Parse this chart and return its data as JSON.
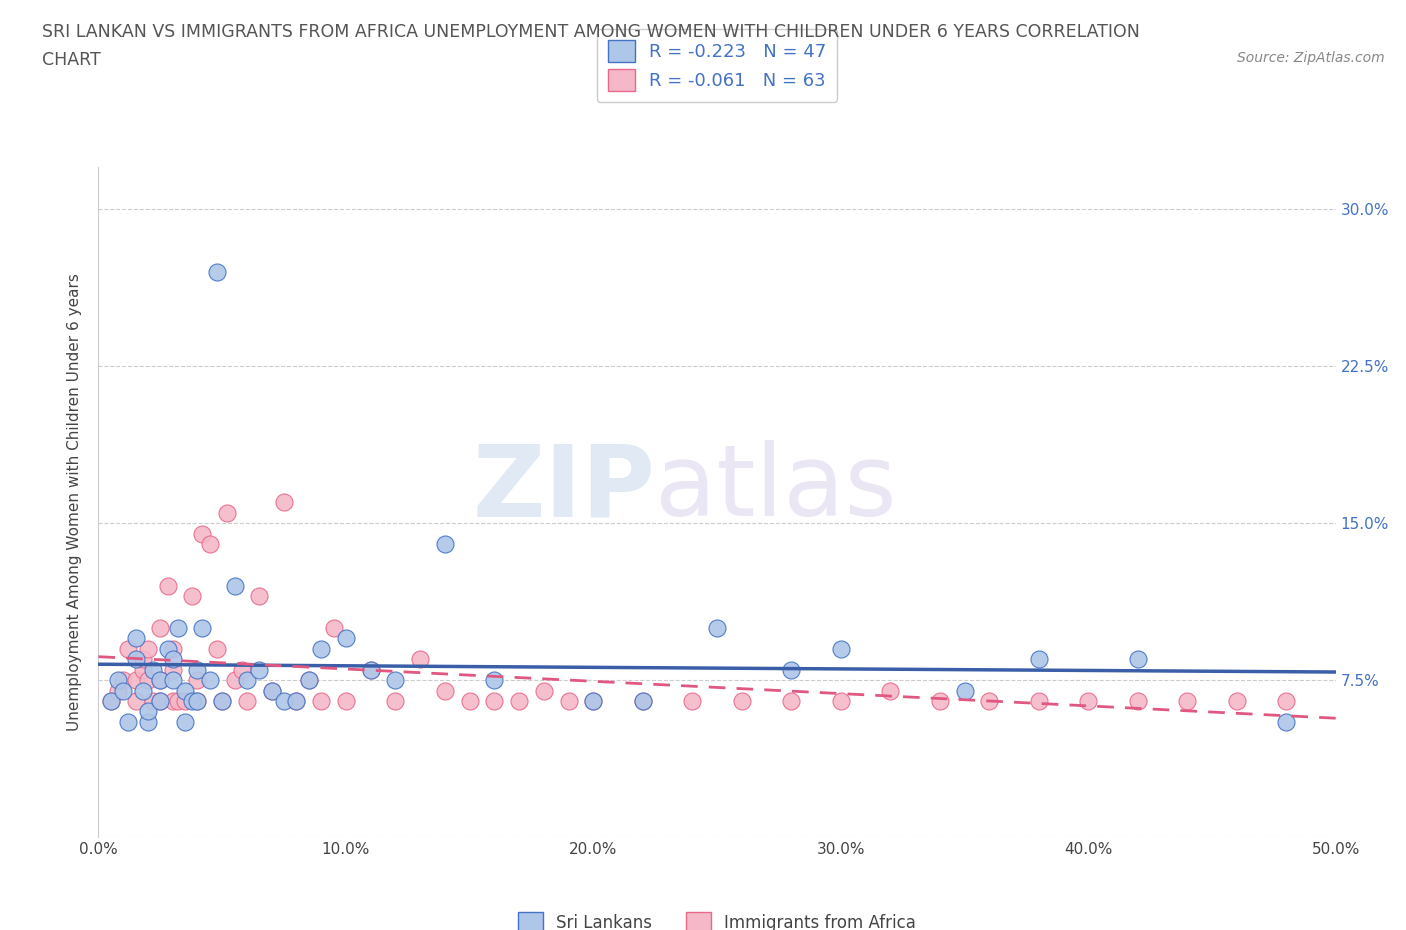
{
  "title_line1": "SRI LANKAN VS IMMIGRANTS FROM AFRICA UNEMPLOYMENT AMONG WOMEN WITH CHILDREN UNDER 6 YEARS CORRELATION",
  "title_line2": "CHART",
  "source": "Source: ZipAtlas.com",
  "ylabel": "Unemployment Among Women with Children Under 6 years",
  "xlim": [
    0.0,
    0.5
  ],
  "ylim": [
    0.0,
    0.32
  ],
  "xticks": [
    0.0,
    0.1,
    0.2,
    0.3,
    0.4,
    0.5
  ],
  "xtick_labels": [
    "0.0%",
    "10.0%",
    "20.0%",
    "30.0%",
    "40.0%",
    "50.0%"
  ],
  "yticks": [
    0.0,
    0.075,
    0.15,
    0.225,
    0.3
  ],
  "ytick_labels": [
    "",
    "7.5%",
    "15.0%",
    "22.5%",
    "30.0%"
  ],
  "grid_color": "#cccccc",
  "background_color": "#ffffff",
  "sri_lankans_color": "#aec6e8",
  "immigrants_africa_color": "#f4b8c8",
  "sri_lankans_edge_color": "#4472c4",
  "immigrants_africa_edge_color": "#e8698a",
  "sri_lankans_line_color": "#3a5fa8",
  "immigrants_africa_line_color": "#e05880",
  "R_sri": -0.223,
  "N_sri": 47,
  "R_afr": -0.061,
  "N_afr": 63,
  "sri_lankans_x": [
    0.005,
    0.008,
    0.01,
    0.012,
    0.015,
    0.015,
    0.018,
    0.02,
    0.02,
    0.022,
    0.025,
    0.025,
    0.028,
    0.03,
    0.03,
    0.032,
    0.035,
    0.035,
    0.038,
    0.04,
    0.04,
    0.042,
    0.045,
    0.048,
    0.05,
    0.055,
    0.06,
    0.065,
    0.07,
    0.075,
    0.08,
    0.085,
    0.09,
    0.1,
    0.11,
    0.12,
    0.14,
    0.16,
    0.2,
    0.22,
    0.25,
    0.28,
    0.3,
    0.35,
    0.38,
    0.42,
    0.48
  ],
  "sri_lankans_y": [
    0.065,
    0.075,
    0.07,
    0.055,
    0.085,
    0.095,
    0.07,
    0.055,
    0.06,
    0.08,
    0.065,
    0.075,
    0.09,
    0.075,
    0.085,
    0.1,
    0.055,
    0.07,
    0.065,
    0.065,
    0.08,
    0.1,
    0.075,
    0.27,
    0.065,
    0.12,
    0.075,
    0.08,
    0.07,
    0.065,
    0.065,
    0.075,
    0.09,
    0.095,
    0.08,
    0.075,
    0.14,
    0.075,
    0.065,
    0.065,
    0.1,
    0.08,
    0.09,
    0.07,
    0.085,
    0.085,
    0.055
  ],
  "immigrants_africa_x": [
    0.005,
    0.008,
    0.01,
    0.012,
    0.015,
    0.015,
    0.018,
    0.018,
    0.02,
    0.02,
    0.022,
    0.025,
    0.025,
    0.025,
    0.028,
    0.03,
    0.03,
    0.03,
    0.032,
    0.035,
    0.038,
    0.04,
    0.04,
    0.042,
    0.045,
    0.048,
    0.05,
    0.052,
    0.055,
    0.058,
    0.06,
    0.065,
    0.07,
    0.075,
    0.08,
    0.085,
    0.09,
    0.095,
    0.1,
    0.11,
    0.12,
    0.13,
    0.14,
    0.15,
    0.16,
    0.17,
    0.18,
    0.19,
    0.2,
    0.22,
    0.24,
    0.26,
    0.28,
    0.3,
    0.32,
    0.34,
    0.36,
    0.38,
    0.4,
    0.42,
    0.44,
    0.46,
    0.48
  ],
  "immigrants_africa_y": [
    0.065,
    0.07,
    0.075,
    0.09,
    0.065,
    0.075,
    0.08,
    0.085,
    0.075,
    0.09,
    0.065,
    0.065,
    0.075,
    0.1,
    0.12,
    0.065,
    0.08,
    0.09,
    0.065,
    0.065,
    0.115,
    0.065,
    0.075,
    0.145,
    0.14,
    0.09,
    0.065,
    0.155,
    0.075,
    0.08,
    0.065,
    0.115,
    0.07,
    0.16,
    0.065,
    0.075,
    0.065,
    0.1,
    0.065,
    0.08,
    0.065,
    0.085,
    0.07,
    0.065,
    0.065,
    0.065,
    0.07,
    0.065,
    0.065,
    0.065,
    0.065,
    0.065,
    0.065,
    0.065,
    0.07,
    0.065,
    0.065,
    0.065,
    0.065,
    0.065,
    0.065,
    0.065,
    0.065
  ]
}
